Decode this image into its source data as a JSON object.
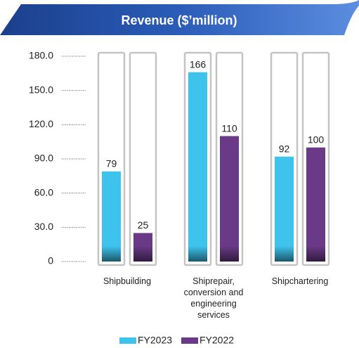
{
  "chart_data": {
    "type": "bar",
    "title": "Revenue ($’million)",
    "categories": [
      "Shipbuilding",
      "Shiprepair, conversion and engineering services",
      "Shipchartering"
    ],
    "series": [
      {
        "name": "FY2023",
        "color": "#3ec3ec",
        "values": [
          79,
          166,
          92
        ]
      },
      {
        "name": "FY2022",
        "color": "#6a3a88",
        "values": [
          25,
          110,
          100
        ]
      }
    ],
    "ylim": [
      0,
      180
    ],
    "yticks": [
      0,
      {
        "value": 30,
        "label": "30.0"
      },
      {
        "value": 60,
        "label": "60.0"
      },
      {
        "value": 90,
        "label": "90.0"
      },
      {
        "value": 120,
        "label": "120.0"
      },
      {
        "value": 150,
        "label": "150.0"
      },
      {
        "value": 180,
        "label": "180.0"
      }
    ],
    "legend": "bottom"
  }
}
